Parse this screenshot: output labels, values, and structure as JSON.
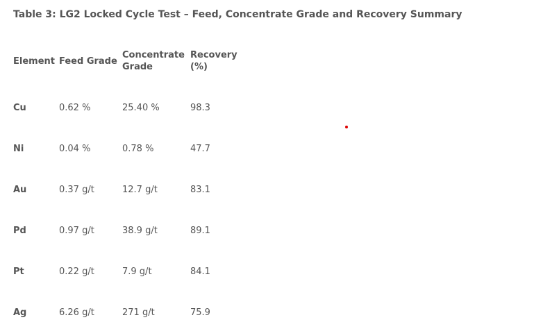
{
  "title": "Table 3: LG2 Locked Cycle Test – Feed, Concentrate Grade and Recovery Summary",
  "table": {
    "headers": [
      "Element",
      "Feed Grade",
      "Concentrate Grade",
      "Recovery (%)"
    ],
    "rows": [
      [
        "Cu",
        "0.62 %",
        "25.40 %",
        "98.3"
      ],
      [
        "Ni",
        "0.04 %",
        "0.78 %",
        "47.7"
      ],
      [
        "Au",
        "0.37 g/t",
        "12.7 g/t",
        "83.1"
      ],
      [
        "Pd",
        "0.97 g/t",
        "38.9 g/t",
        "89.1"
      ],
      [
        "Pt",
        "0.22 g/t",
        "7.9 g/t",
        "84.1"
      ],
      [
        "Ag",
        "6.26 g/t",
        "271 g/t",
        "75.9"
      ]
    ]
  }
}
